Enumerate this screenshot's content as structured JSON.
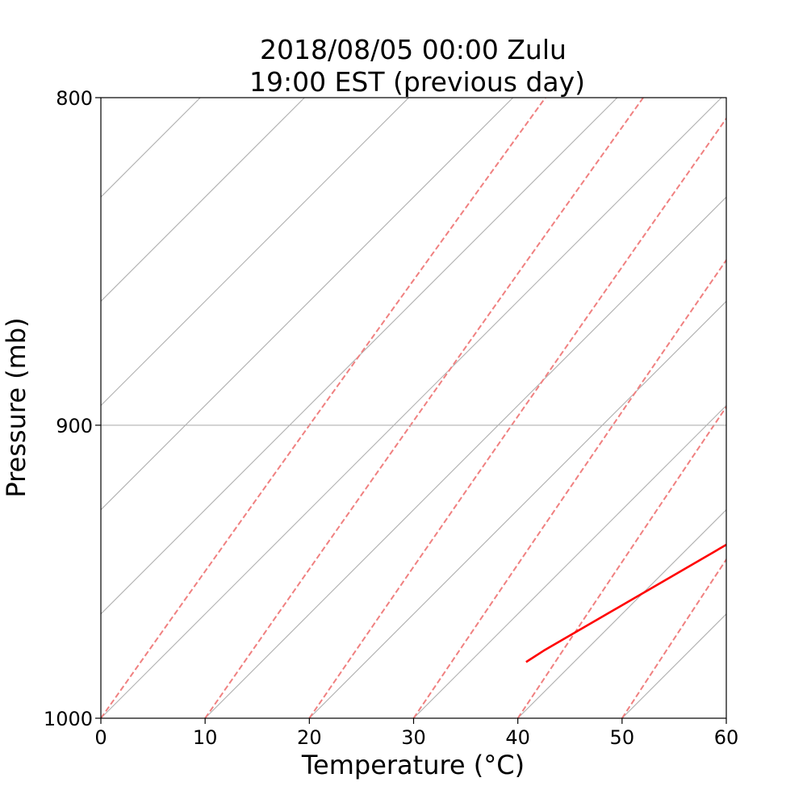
{
  "chart_data": {
    "type": "line",
    "title_lines": [
      "2018/08/05 00:00 Zulu",
      "19:00 EST (previous day)"
    ],
    "xlabel": "Temperature (°C)",
    "ylabel": "Pressure (mb)",
    "xlim": [
      0,
      60
    ],
    "ylim": [
      1000,
      800
    ],
    "y_scale": "log",
    "x_ticks": [
      0,
      10,
      20,
      30,
      40,
      50,
      60
    ],
    "y_ticks": [
      800,
      900,
      1000
    ],
    "grid": "horizontal at 900",
    "background_lines": {
      "isotherms": {
        "style": "solid",
        "color": "#b0b0b0",
        "values": [
          -50,
          -40,
          -30,
          -20,
          -10,
          0,
          10,
          20,
          30,
          40,
          50,
          60
        ]
      },
      "dry_adiabats": {
        "style": "dashed",
        "color": "#f08080",
        "values": [
          0,
          10,
          20,
          30,
          40,
          50
        ]
      }
    },
    "series": [
      {
        "color": "#ff0000",
        "points": [
          {
            "x": 35.4,
            "p": 980
          },
          {
            "x": 36.0,
            "p": 976
          },
          {
            "x": 60.0,
            "p": 862
          }
        ]
      }
    ]
  }
}
